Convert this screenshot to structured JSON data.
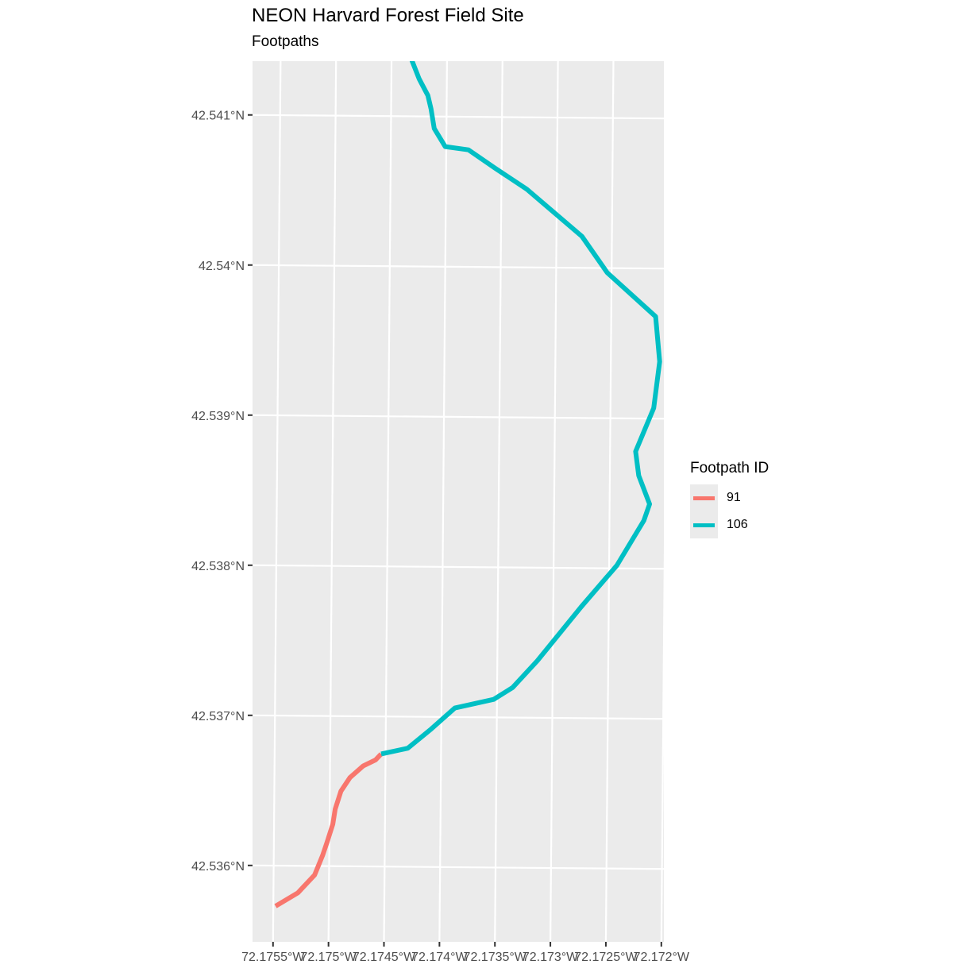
{
  "chart_data": {
    "type": "line",
    "title": "NEON Harvard Forest Field Site",
    "subtitle": "Footpaths",
    "xlabel": "",
    "ylabel": "",
    "x_ticks": [
      -72.1755,
      -72.175,
      -72.1745,
      -72.174,
      -72.1735,
      -72.173,
      -72.1725,
      -72.172
    ],
    "x_tick_labels": [
      "72.1755°W",
      "72.175°W",
      "72.1745°W",
      "72.174°W",
      "72.1735°W",
      "72.173°W",
      "72.1725°W",
      "72.172°W"
    ],
    "y_ticks": [
      42.536,
      42.537,
      42.538,
      42.539,
      42.54,
      42.541
    ],
    "y_tick_labels": [
      "42.536°N",
      "42.537°N",
      "42.538°N",
      "42.539°N",
      "42.54°N",
      "42.541°N"
    ],
    "xlim": [
      -72.17567,
      -72.17196
    ],
    "ylim": [
      42.53553,
      42.54137
    ],
    "grid": true,
    "legend": {
      "title": "Footpath ID",
      "placement": "right"
    },
    "series": [
      {
        "name": "91",
        "color": "#f8766d",
        "x": [
          -72.17548,
          -72.17528,
          -72.17513,
          -72.17506,
          -72.17502,
          -72.17497,
          -72.17495,
          -72.1749,
          -72.17482,
          -72.1747,
          -72.17459,
          -72.17454
        ],
        "y": [
          42.53573,
          42.53582,
          42.53594,
          42.53607,
          42.53616,
          42.53628,
          42.53638,
          42.5365,
          42.53659,
          42.53667,
          42.53671,
          42.53675
        ]
      },
      {
        "name": "106",
        "color": "#00bfc4",
        "x": [
          -72.17454,
          -72.1743,
          -72.17409,
          -72.17388,
          -72.17353,
          -72.17336,
          -72.17314,
          -72.17275,
          -72.17243,
          -72.17219,
          -72.17214,
          -72.17224,
          -72.17227,
          -72.17211,
          -72.17206,
          -72.1721,
          -72.17254,
          -72.17277,
          -72.17327,
          -72.17356,
          -72.1738,
          -72.17401,
          -72.17411,
          -72.17414,
          -72.17417,
          -72.17425,
          -72.17437,
          -72.17442,
          -72.17442,
          -72.17438
        ],
        "y": [
          42.53675,
          42.53679,
          42.53692,
          42.53706,
          42.53712,
          42.5372,
          42.53738,
          42.53774,
          42.53802,
          42.53832,
          42.53843,
          42.53862,
          42.53878,
          42.53907,
          42.53938,
          42.53968,
          42.53997,
          42.54021,
          42.54052,
          42.54066,
          42.54078,
          42.5408,
          42.54092,
          42.54105,
          42.54114,
          42.54125,
          42.54147,
          42.54158,
          42.54168,
          42.54173
        ]
      }
    ]
  }
}
